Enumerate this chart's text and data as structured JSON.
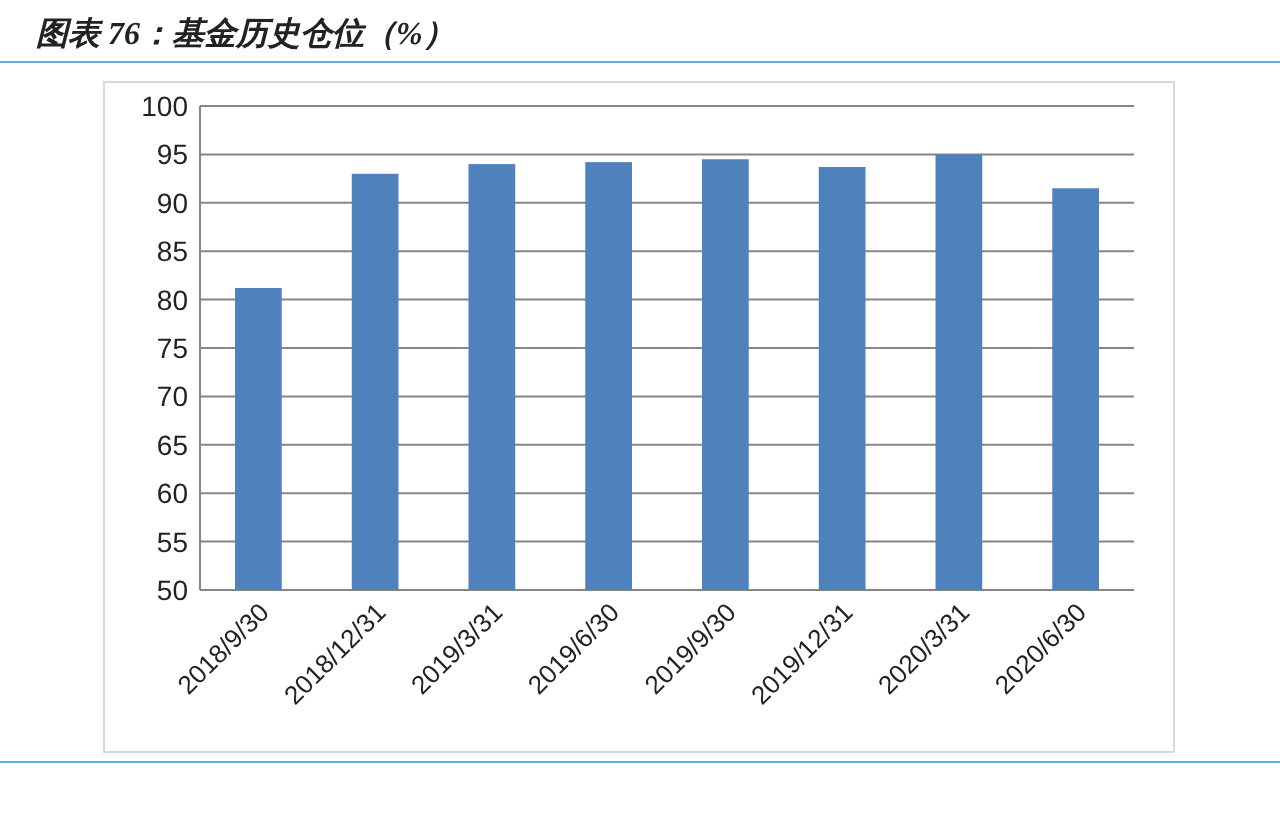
{
  "chart_data": {
    "type": "bar",
    "title": "图表 76：基金历史仓位（%）",
    "categories": [
      "2018/9/30",
      "2018/12/31",
      "2019/3/31",
      "2019/6/30",
      "2019/9/30",
      "2019/12/31",
      "2020/3/31",
      "2020/6/30"
    ],
    "values": [
      81.2,
      93.0,
      94.0,
      94.2,
      94.5,
      93.7,
      95.0,
      91.5
    ],
    "color": "#4f81bd",
    "ylim": [
      50,
      100
    ],
    "yticks": [
      50,
      55,
      60,
      65,
      70,
      75,
      80,
      85,
      90,
      95,
      100
    ],
    "grid": "y"
  }
}
